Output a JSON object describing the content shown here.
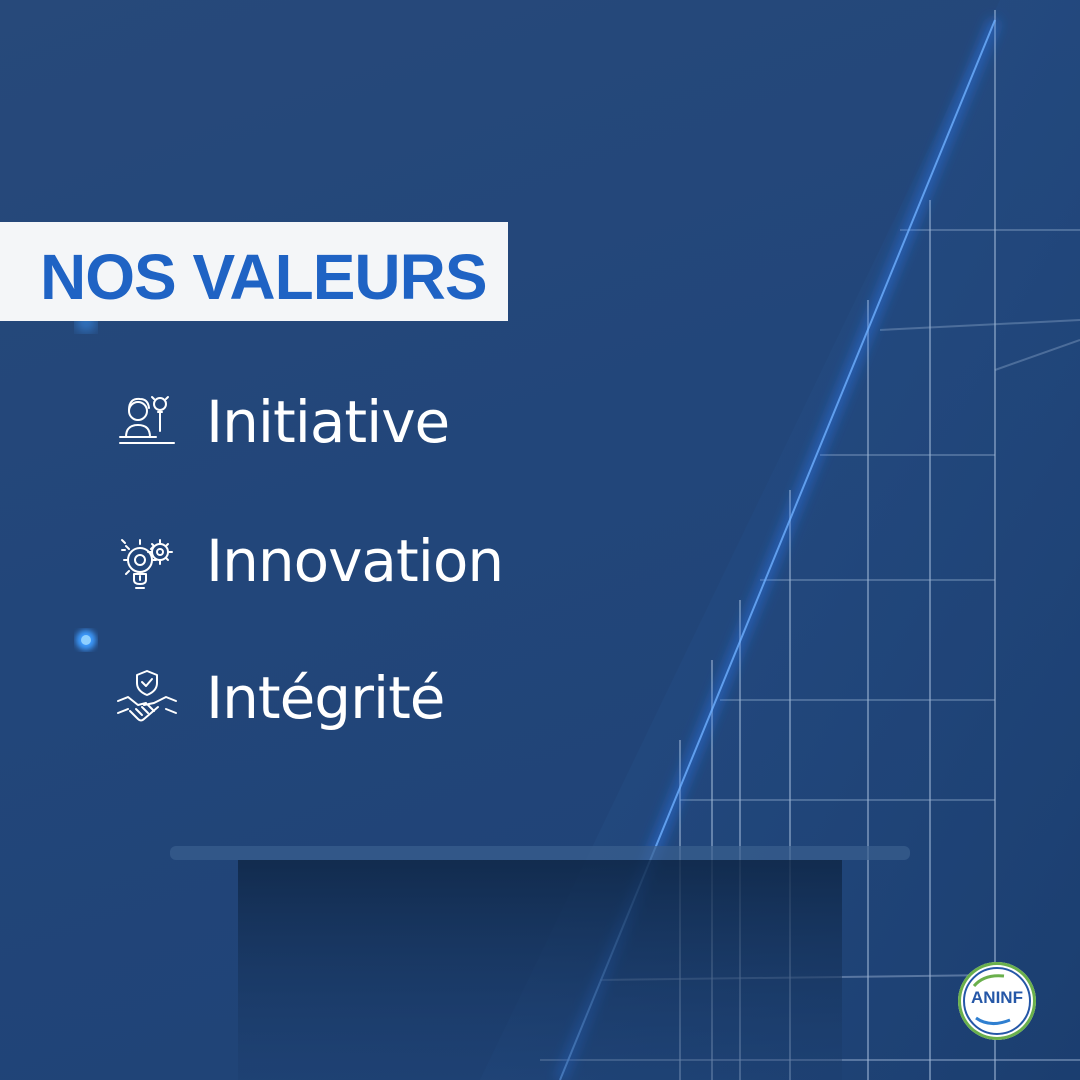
{
  "title": "NOS VALEURS",
  "values": [
    {
      "label": "Initiative",
      "icon": "person-idea-icon"
    },
    {
      "label": "Innovation",
      "icon": "lightbulb-gear-icon"
    },
    {
      "label": "Intégrité",
      "icon": "handshake-shield-icon"
    }
  ],
  "logo": {
    "text": "ANINF",
    "icon": "aninf-logo-icon"
  },
  "colors": {
    "background": "#24487a",
    "title_bg": "#f4f6f8",
    "title_text": "#1f63c4",
    "glow": "#2a7fff",
    "text": "#ffffff"
  }
}
